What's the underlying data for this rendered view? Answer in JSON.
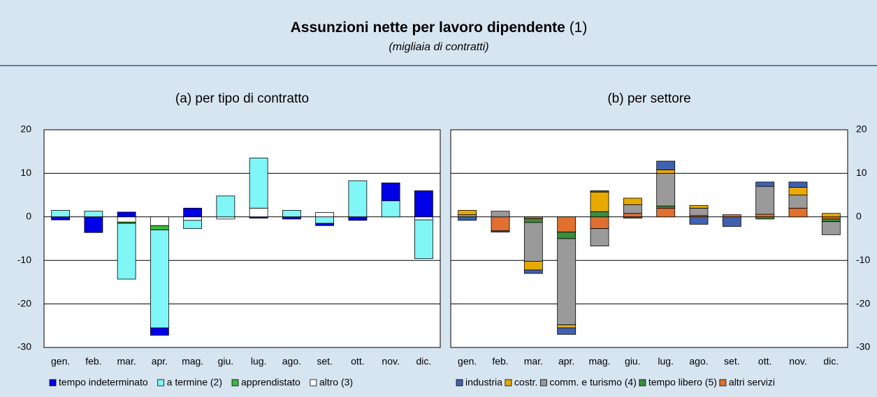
{
  "header": {
    "title": "Assunzioni nette per lavoro dipendente",
    "note": "(1)",
    "subtitle": "(migliaia di contratti)"
  },
  "chart_data": [
    {
      "type": "bar",
      "stacked": true,
      "title": "(a) per tipo di contratto",
      "axis_side": "left",
      "categories": [
        "gen.",
        "feb.",
        "mar.",
        "apr.",
        "mag.",
        "giu.",
        "lug.",
        "ago.",
        "set.",
        "ott.",
        "nov.",
        "dic."
      ],
      "series": [
        {
          "name": "tempo indeterminato",
          "color": "#0000e6",
          "values": [
            -0.7,
            -3.6,
            1.1,
            -1.7,
            2.0,
            0,
            -0.3,
            -0.5,
            -0.5,
            -0.8,
            4.1,
            6.0
          ]
        },
        {
          "name": "a termine (2)",
          "color": "#80f6f6",
          "values": [
            1.5,
            1.3,
            -12.8,
            -22.5,
            -1.9,
            4.8,
            11.5,
            1.5,
            -1.5,
            8.3,
            3.7,
            -8.9
          ]
        },
        {
          "name": "apprendistato",
          "color": "#3cb83c",
          "values": [
            0,
            0,
            -0.3,
            -1.0,
            0,
            0,
            0,
            0,
            0,
            0,
            0,
            0
          ]
        },
        {
          "name": "altro (3)",
          "color": "#ffffff",
          "values": [
            0,
            0,
            -1.2,
            -2.0,
            -0.8,
            -0.5,
            2.0,
            0,
            1.0,
            0,
            0,
            -0.7
          ]
        }
      ],
      "ylim": [
        -30,
        20
      ],
      "yticks": [
        -30,
        -20,
        -10,
        0,
        10,
        20
      ],
      "grid": true
    },
    {
      "type": "bar",
      "stacked": true,
      "title": "(b) per settore",
      "axis_side": "right",
      "categories": [
        "gen.",
        "feb.",
        "mar.",
        "apr.",
        "mag.",
        "giu.",
        "lug.",
        "ago.",
        "set.",
        "ott.",
        "nov.",
        "dic."
      ],
      "series": [
        {
          "name": "industria",
          "color": "#3f62b0",
          "values": [
            -0.8,
            -0.3,
            -0.8,
            -1.5,
            0.3,
            -0.3,
            2.0,
            -1.7,
            -2.2,
            1.0,
            1.2,
            0
          ]
        },
        {
          "name": "costr.",
          "color": "#e8aa00",
          "values": [
            1.0,
            0,
            -2.0,
            -0.7,
            4.5,
            1.5,
            0.8,
            0.6,
            0,
            0,
            1.8,
            0.8
          ]
        },
        {
          "name": "comm. e turismo (4)",
          "color": "#9a9a9a",
          "values": [
            0.5,
            1.3,
            -8.9,
            -19.8,
            -4.0,
            2.0,
            7.5,
            1.7,
            0,
            6.4,
            3.0,
            -3.0
          ]
        },
        {
          "name": "tempo libero (5)",
          "color": "#3c8c3c",
          "values": [
            0,
            0,
            -0.9,
            -1.5,
            1.2,
            0,
            0.5,
            0,
            0,
            -0.5,
            0,
            -0.6
          ]
        },
        {
          "name": "altri servizi",
          "color": "#e07030",
          "values": [
            0,
            -3.2,
            -0.4,
            -3.5,
            -2.7,
            0.8,
            2.0,
            0.3,
            0.5,
            0.6,
            2.0,
            -0.5
          ]
        }
      ],
      "ylim": [
        -30,
        20
      ],
      "yticks": [
        -30,
        -20,
        -10,
        0,
        10,
        20
      ],
      "grid": true
    }
  ]
}
